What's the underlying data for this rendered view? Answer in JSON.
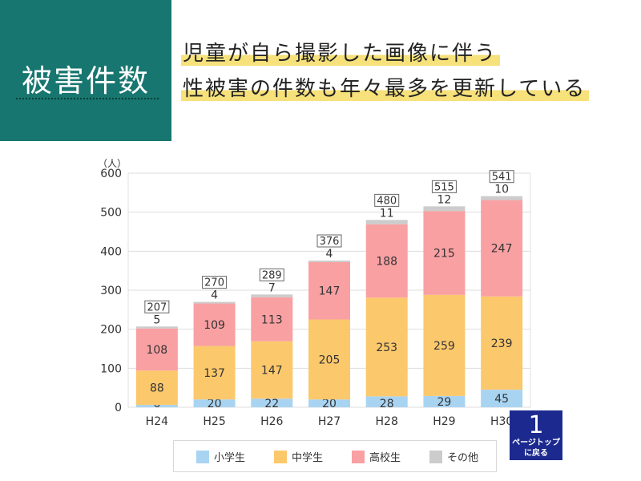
{
  "section_title": "被害件数",
  "headline": {
    "line1": "児童が自ら撮影した画像に伴う",
    "line2": "性被害の件数も年々最多を更新している"
  },
  "page_top_button": {
    "number": "1",
    "line1": "ページトップ",
    "line2": "に戻る"
  },
  "chart_data": {
    "type": "bar",
    "stacked": true,
    "unit_label": "（人）",
    "categories": [
      "H24",
      "H25",
      "H26",
      "H27",
      "H28",
      "H29",
      "H30"
    ],
    "series": [
      {
        "name": "小学生",
        "color": "#a8d4f2",
        "values": [
          6,
          20,
          22,
          20,
          28,
          29,
          45
        ]
      },
      {
        "name": "中学生",
        "color": "#fcc86c",
        "values": [
          88,
          137,
          147,
          205,
          253,
          259,
          239
        ]
      },
      {
        "name": "高校生",
        "color": "#f9a0a3",
        "values": [
          108,
          109,
          113,
          147,
          188,
          215,
          247
        ]
      },
      {
        "name": "その他",
        "color": "#cccccc",
        "values": [
          5,
          4,
          7,
          4,
          11,
          12,
          10
        ]
      }
    ],
    "totals": [
      207,
      270,
      289,
      376,
      480,
      515,
      541
    ],
    "yticks": [
      0,
      100,
      200,
      300,
      400,
      500,
      600
    ],
    "ylim": [
      0,
      600
    ],
    "grid": true,
    "legend": "bottom"
  }
}
